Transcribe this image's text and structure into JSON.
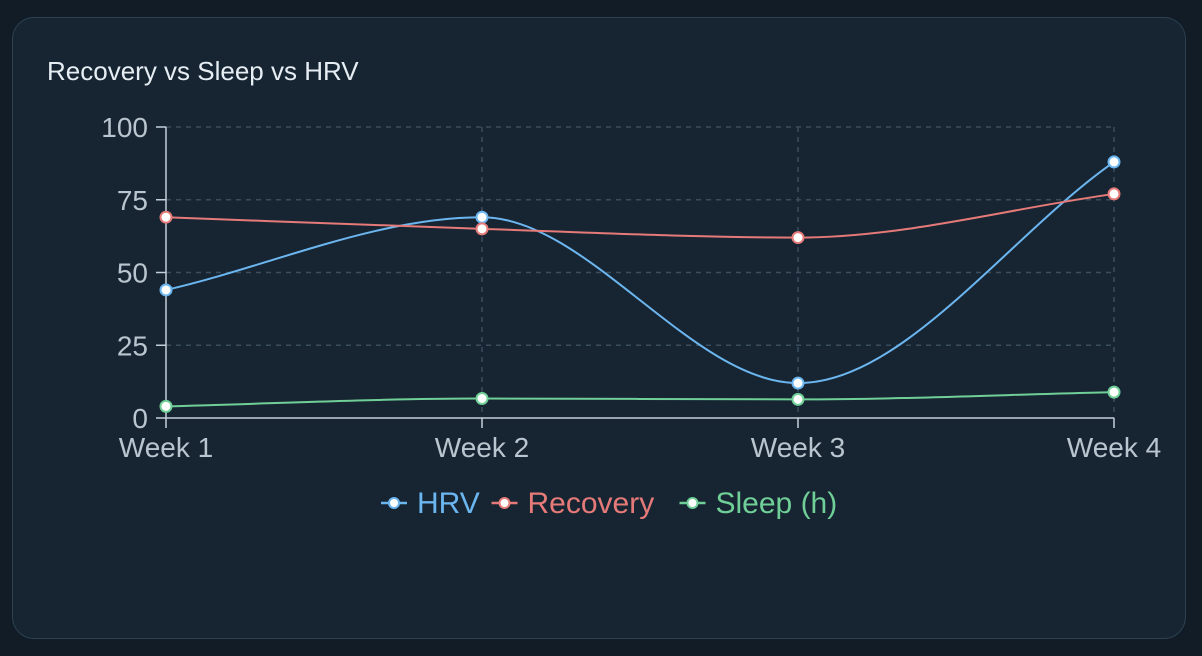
{
  "card": {
    "title": "Recovery vs Sleep vs HRV"
  },
  "chart_data": {
    "type": "line",
    "title": "Recovery vs Sleep vs HRV",
    "categories": [
      "Week 1",
      "Week 2",
      "Week 3",
      "Week 4"
    ],
    "yticks": [
      "0",
      "25",
      "50",
      "75",
      "100"
    ],
    "ylim": [
      0,
      100
    ],
    "grid": true,
    "legend_position": "bottom",
    "series": [
      {
        "name": "HRV",
        "values": [
          44,
          69,
          12,
          88
        ],
        "color": "#6cb6f0"
      },
      {
        "name": "Recovery",
        "values": [
          69,
          65,
          62,
          77
        ],
        "color": "#e57a78"
      },
      {
        "name": "Sleep (h)",
        "values": [
          4,
          6.7,
          6.4,
          8.9
        ],
        "color": "#6fcf97"
      }
    ],
    "colors": {
      "grid": "#3a4d5c",
      "axis": "#c3d0da",
      "tick_label": "#b9c6d0",
      "marker_fill": "#ffffff"
    }
  }
}
